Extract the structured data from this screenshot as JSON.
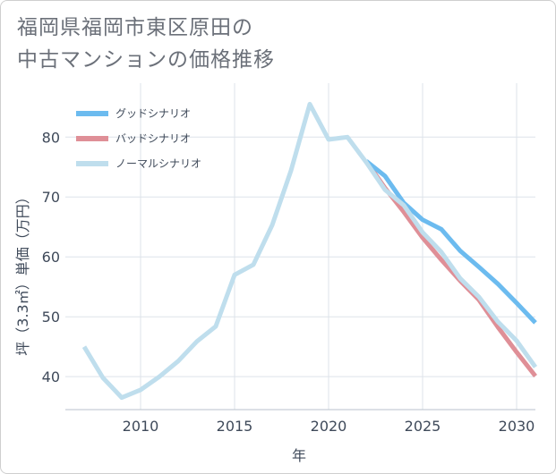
{
  "title": {
    "line1": "福岡県福岡市東区原田の",
    "line2": "中古マンションの価格推移"
  },
  "chart_data": {
    "type": "line",
    "xlabel": "年",
    "ylabel": "坪（3.3㎡）単価（万円）",
    "xlim": [
      2006,
      2031
    ],
    "ylim": [
      34.5,
      89
    ],
    "xticks": [
      2010,
      2015,
      2020,
      2025,
      2030
    ],
    "yticks": [
      40,
      50,
      60,
      70,
      80
    ],
    "grid": true,
    "legend_position": "top-left",
    "series": [
      {
        "name": "グッドシナリオ",
        "color": "#6cbbef",
        "x": [
          2022,
          2023,
          2024,
          2025,
          2026,
          2027,
          2028,
          2029,
          2030,
          2031
        ],
        "y": [
          76,
          73.5,
          69,
          66.2,
          64.6,
          61,
          58.3,
          55.5,
          52.3,
          49
        ]
      },
      {
        "name": "バッドシナリオ",
        "color": "#df8f97",
        "x": [
          2022,
          2023,
          2024,
          2025,
          2026,
          2027,
          2028,
          2029,
          2030,
          2031
        ],
        "y": [
          76,
          71.5,
          67.5,
          63.2,
          59.5,
          56,
          52.8,
          48.3,
          44.1,
          40.1
        ]
      },
      {
        "name": "ノーマルシナリオ",
        "color": "#bfdeed",
        "x": [
          2007,
          2008,
          2009,
          2010,
          2011,
          2012,
          2013,
          2014,
          2015,
          2016,
          2017,
          2018,
          2019,
          2020,
          2021,
          2022,
          2023,
          2024,
          2025,
          2026,
          2027,
          2028,
          2029,
          2030,
          2031
        ],
        "y": [
          45,
          39.8,
          36.5,
          37.8,
          40,
          42.6,
          45.9,
          48.4,
          57,
          58.7,
          65.3,
          74.4,
          85.5,
          79.6,
          80,
          75.8,
          71.2,
          68.6,
          64.1,
          60.8,
          56.4,
          53.3,
          49.2,
          46,
          41.6
        ]
      }
    ]
  }
}
